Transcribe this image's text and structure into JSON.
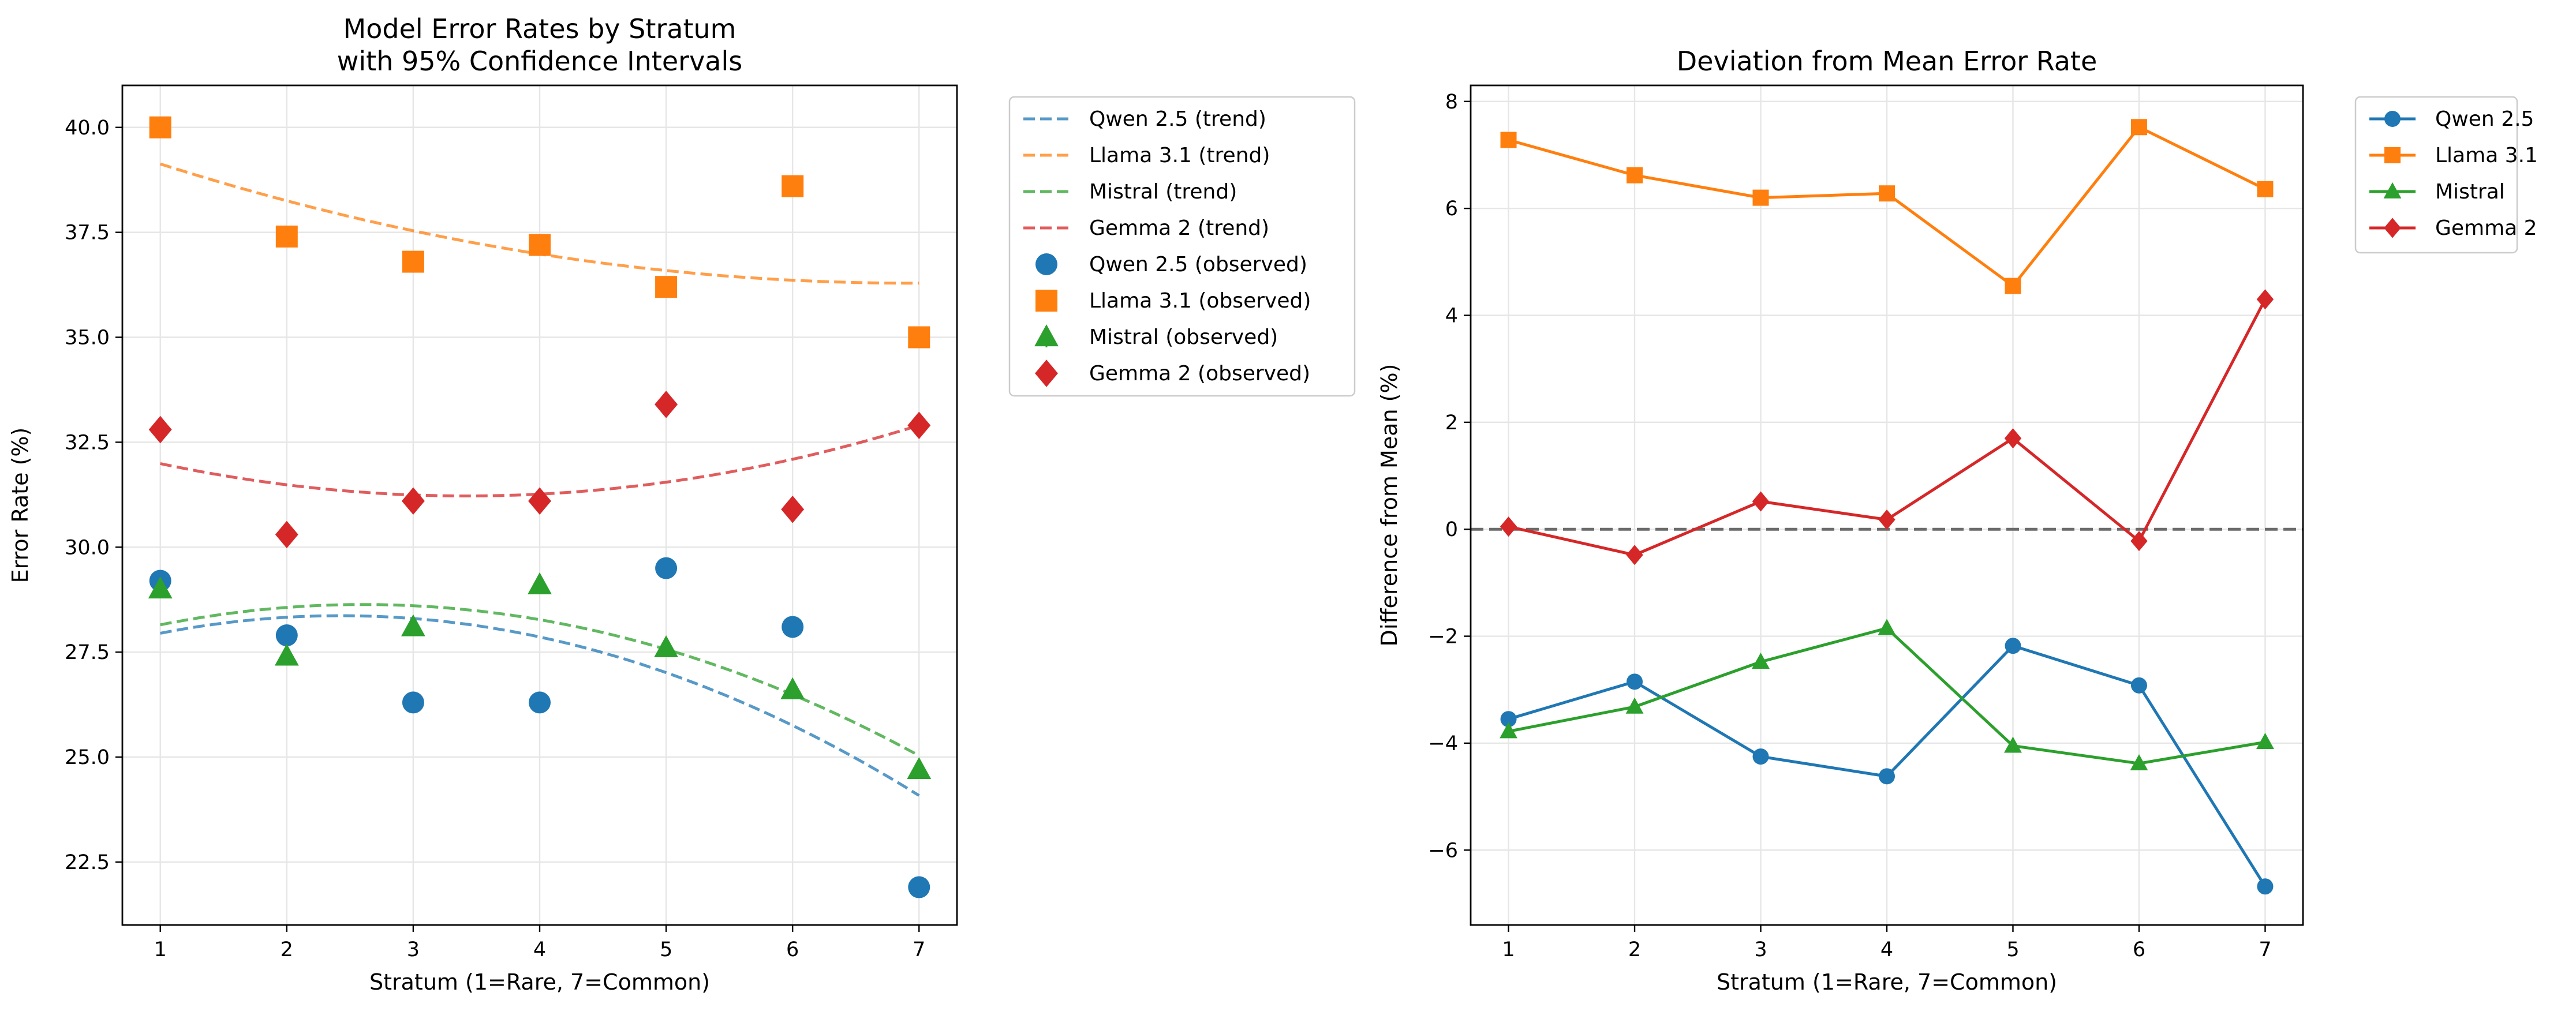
{
  "chart_data": [
    {
      "type": "scatter",
      "title": "Model Error Rates by Stratum",
      "subtitle": "with 95% Confidence Intervals",
      "xlabel": "Stratum (1=Rare, 7=Common)",
      "ylabel": "Error Rate (%)",
      "x": [
        1,
        2,
        3,
        4,
        5,
        6,
        7
      ],
      "xlim": [
        0.7,
        7.3
      ],
      "ylim": [
        21.0,
        41.0
      ],
      "yticks": [
        22.5,
        25.0,
        27.5,
        30.0,
        32.5,
        35.0,
        37.5,
        40.0
      ],
      "ytick_labels": [
        "22.5",
        "25.0",
        "27.5",
        "30.0",
        "32.5",
        "35.0",
        "37.5",
        "40.0"
      ],
      "grid": true,
      "legend_position": "outside-right-top",
      "series": [
        {
          "name": "Qwen 2.5 (observed)",
          "color": "#1f77b4",
          "marker": "circle",
          "values": [
            29.2,
            27.9,
            26.3,
            26.3,
            29.5,
            28.1,
            21.9
          ]
        },
        {
          "name": "Llama 3.1 (observed)",
          "color": "#ff7f0e",
          "marker": "square",
          "values": [
            40.0,
            37.4,
            36.8,
            37.2,
            36.2,
            38.6,
            35.0
          ]
        },
        {
          "name": "Mistral (observed)",
          "color": "#2ca02c",
          "marker": "triangle",
          "values": [
            29.0,
            27.4,
            28.1,
            29.1,
            27.6,
            26.6,
            24.7
          ]
        },
        {
          "name": "Gemma 2 (observed)",
          "color": "#d62728",
          "marker": "diamond",
          "values": [
            32.8,
            30.3,
            31.1,
            31.1,
            33.4,
            30.9,
            32.9
          ]
        }
      ],
      "trends": [
        {
          "name": "Qwen 2.5 (trend)",
          "color": "#1f77b4",
          "style": "dashed",
          "values": [
            27.96,
            28.31,
            28.31,
            27.86,
            27.01,
            25.76,
            24.08
          ]
        },
        {
          "name": "Llama 3.1 (trend)",
          "color": "#ff7f0e",
          "style": "dashed",
          "values": [
            39.13,
            38.25,
            37.54,
            36.98,
            36.59,
            36.36,
            36.29
          ]
        },
        {
          "name": "Mistral (trend)",
          "color": "#2ca02c",
          "style": "dashed",
          "values": [
            28.17,
            28.56,
            28.56,
            28.27,
            27.59,
            26.53,
            25.0
          ]
        },
        {
          "name": "Gemma 2 (trend)",
          "color": "#d62728",
          "style": "dashed",
          "values": [
            31.99,
            31.49,
            31.24,
            31.26,
            31.55,
            32.1,
            32.9
          ]
        }
      ]
    },
    {
      "type": "line",
      "title": "Deviation from Mean Error Rate",
      "xlabel": "Stratum (1=Rare, 7=Common)",
      "ylabel": "Difference from Mean (%)",
      "x": [
        1,
        2,
        3,
        4,
        5,
        6,
        7
      ],
      "xlim": [
        0.7,
        7.3
      ],
      "ylim": [
        -7.4,
        8.3
      ],
      "yticks": [
        -6,
        -4,
        -2,
        0,
        2,
        4,
        6,
        8
      ],
      "ytick_labels": [
        "−6",
        "−4",
        "−2",
        "0",
        "2",
        "4",
        "6",
        "8"
      ],
      "grid": true,
      "reference_line": 0,
      "legend_position": "outside-right-top",
      "series": [
        {
          "name": "Qwen 2.5",
          "color": "#1f77b4",
          "marker": "circle",
          "values": [
            -3.55,
            -2.85,
            -4.25,
            -4.62,
            -2.18,
            -2.92,
            -6.68
          ]
        },
        {
          "name": "Llama 3.1",
          "color": "#ff7f0e",
          "marker": "square",
          "values": [
            7.28,
            6.62,
            6.2,
            6.28,
            4.55,
            7.52,
            6.36
          ]
        },
        {
          "name": "Mistral",
          "color": "#2ca02c",
          "marker": "triangle",
          "values": [
            -3.78,
            -3.32,
            -2.48,
            -1.85,
            -4.05,
            -4.38,
            -3.98
          ]
        },
        {
          "name": "Gemma 2",
          "color": "#d62728",
          "marker": "diamond",
          "values": [
            0.05,
            -0.48,
            0.52,
            0.18,
            1.7,
            -0.22,
            4.3
          ]
        }
      ]
    }
  ]
}
